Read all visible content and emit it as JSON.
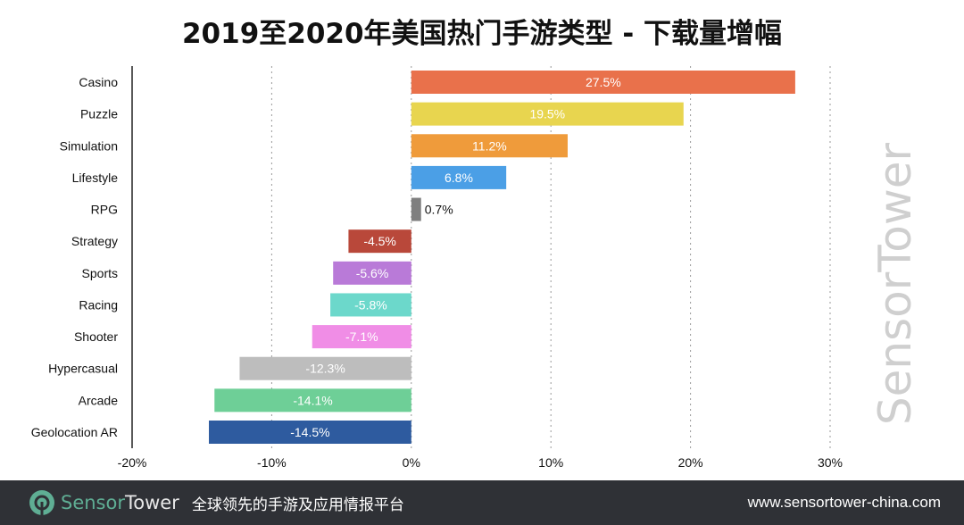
{
  "chart_data": {
    "type": "bar",
    "orientation": "horizontal",
    "title": "2019至2020年美国热门手游类型 - 下载量增幅",
    "categories": [
      "Casino",
      "Puzzle",
      "Simulation",
      "Lifestyle",
      "RPG",
      "Strategy",
      "Sports",
      "Racing",
      "Shooter",
      "Hypercasual",
      "Arcade",
      "Geolocation AR"
    ],
    "values": [
      27.5,
      19.5,
      11.2,
      6.8,
      0.7,
      -4.5,
      -5.6,
      -5.8,
      -7.1,
      -12.3,
      -14.1,
      -14.5
    ],
    "labels": [
      "27.5%",
      "19.5%",
      "11.2%",
      "6.8%",
      "0.7%",
      "-4.5%",
      "-5.6%",
      "-5.8%",
      "-7.1%",
      "-12.3%",
      "-14.1%",
      "-14.5%"
    ],
    "colors": [
      "#e9714b",
      "#e8d54f",
      "#ef9b3b",
      "#4b9fe6",
      "#7f7f7f",
      "#b9483a",
      "#b97ad8",
      "#6cd8cb",
      "#f08de6",
      "#bdbdbd",
      "#6ecf97",
      "#2e5b9f"
    ],
    "xlim": [
      -20,
      30
    ],
    "xticks": [
      -20,
      -10,
      0,
      10,
      20,
      30
    ],
    "xtick_labels": [
      "-20%",
      "-10%",
      "0%",
      "10%",
      "20%",
      "30%"
    ],
    "grid": "vertical dotted",
    "xlabel": "",
    "ylabel": ""
  },
  "watermark": "SensorTower",
  "footer": {
    "brand_a": "Sensor",
    "brand_b": "Tower",
    "tagline": "全球领先的手游及应用情报平台",
    "url": "www.sensortower-china.com"
  }
}
